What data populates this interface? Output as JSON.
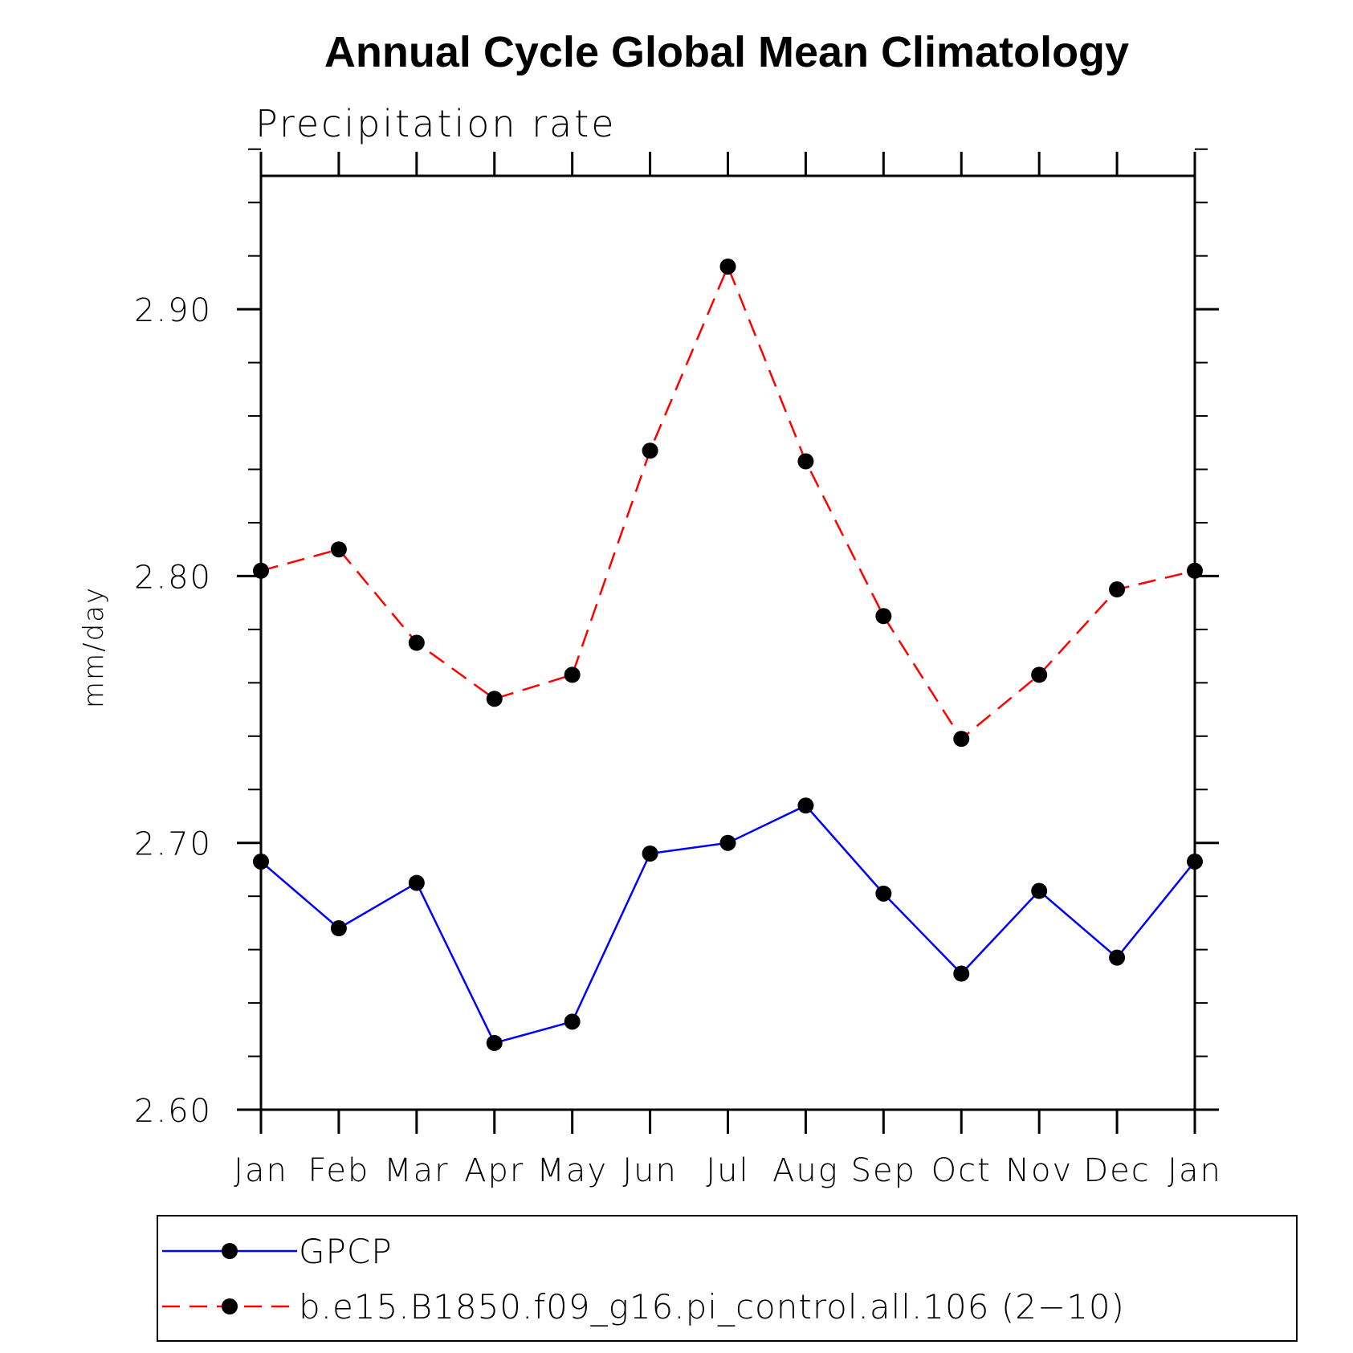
{
  "chart_data": {
    "type": "line",
    "title": "Annual Cycle Global Mean Climatology",
    "subtitle": "Precipitation rate",
    "xlabel": "",
    "ylabel": "mm/day",
    "categories": [
      "Jan",
      "Feb",
      "Mar",
      "Apr",
      "May",
      "Jun",
      "Jul",
      "Aug",
      "Sep",
      "Oct",
      "Nov",
      "Dec",
      "Jan"
    ],
    "ylim": [
      2.6,
      2.95
    ],
    "yticks": [
      2.6,
      2.7,
      2.8,
      2.9
    ],
    "ytick_labels": [
      "2.60",
      "2.70",
      "2.80",
      "2.90"
    ],
    "yminor_step": 0.02,
    "grid": false,
    "legend_position": "bottom",
    "series": [
      {
        "name": "GPCP",
        "color": "#0000ff",
        "dash": "solid",
        "marker": "filled-circle",
        "values": [
          2.693,
          2.668,
          2.685,
          2.625,
          2.633,
          2.696,
          2.7,
          2.714,
          2.681,
          2.651,
          2.682,
          2.657,
          2.693
        ]
      },
      {
        "name": "b.e15.B1850.f09_g16.pi_control.all.106 (2−10)",
        "color": "#ff0000",
        "dash": "dashed",
        "marker": "filled-circle",
        "values": [
          2.802,
          2.81,
          2.775,
          2.754,
          2.763,
          2.847,
          2.916,
          2.843,
          2.785,
          2.739,
          2.763,
          2.795,
          2.802
        ]
      }
    ]
  }
}
